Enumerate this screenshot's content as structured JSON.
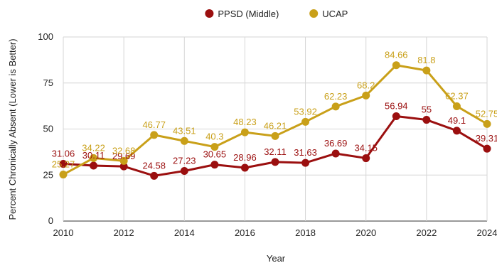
{
  "chart_data": {
    "type": "line",
    "title": "",
    "xlabel": "Year",
    "ylabel": "Percent Chronically Absent (Lower is Better)",
    "x": [
      2010,
      2011,
      2012,
      2013,
      2014,
      2015,
      2016,
      2017,
      2018,
      2019,
      2020,
      2021,
      2022,
      2023,
      2024
    ],
    "xlim": [
      2010,
      2024
    ],
    "ylim": [
      0,
      100
    ],
    "xticks": [
      "2010",
      "2012",
      "2014",
      "2016",
      "2018",
      "2020",
      "2022",
      "2024"
    ],
    "yticks": [
      "0",
      "25",
      "50",
      "75",
      "100"
    ],
    "grid": true,
    "legend_position": "top-center",
    "series": [
      {
        "name": "PPSD (Middle)",
        "color": "#9b0f0f",
        "values": [
          31.06,
          30.11,
          29.69,
          24.58,
          27.23,
          30.65,
          28.96,
          32.11,
          31.63,
          36.69,
          34.15,
          56.94,
          55,
          49.1,
          39.31
        ],
        "labels": [
          "31.06",
          "30.11",
          "29.69",
          "24.58",
          "27.23",
          "30.65",
          "28.96",
          "32.11",
          "31.63",
          "36.69",
          "34.15",
          "56.94",
          "55",
          "49.1",
          "39.31"
        ]
      },
      {
        "name": "UCAP",
        "color": "#c9a019",
        "values": [
          25.27,
          34.22,
          32.68,
          46.77,
          43.51,
          40.3,
          48.23,
          46.21,
          53.92,
          62.23,
          68.2,
          84.66,
          81.8,
          62.37,
          52.75
        ],
        "labels": [
          "25.27",
          "34.22",
          "32.68",
          "46.77",
          "43.51",
          "40.3",
          "48.23",
          "46.21",
          "53.92",
          "62.23",
          "68.2",
          "84.66",
          "81.8",
          "62.37",
          "52.75"
        ]
      }
    ]
  }
}
